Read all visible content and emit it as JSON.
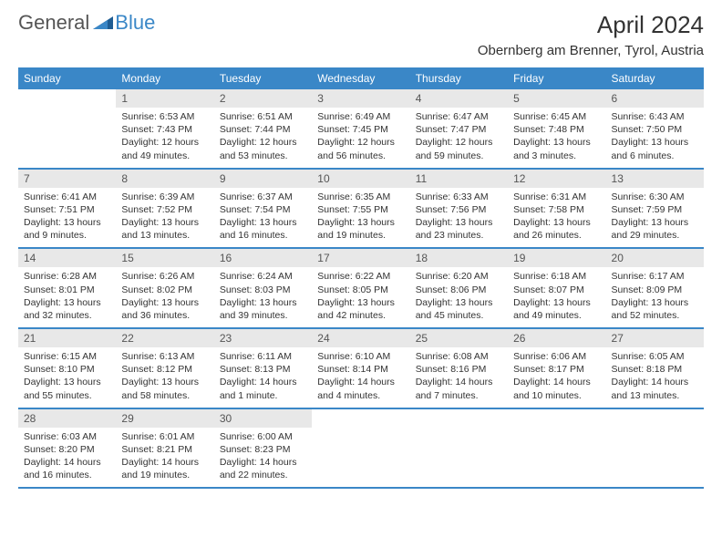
{
  "brand": {
    "text1": "General",
    "text2": "Blue",
    "triangle_color": "#3a87c7"
  },
  "title": "April 2024",
  "location": "Obernberg am Brenner, Tyrol, Austria",
  "colors": {
    "header_bg": "#3a87c7",
    "header_text": "#ffffff",
    "daynum_bg": "#e8e8e8",
    "divider": "#3a87c7",
    "body_text": "#333333"
  },
  "day_headers": [
    "Sunday",
    "Monday",
    "Tuesday",
    "Wednesday",
    "Thursday",
    "Friday",
    "Saturday"
  ],
  "weeks": [
    [
      {
        "day": "",
        "sunrise": "",
        "sunset": "",
        "daylight": ""
      },
      {
        "day": "1",
        "sunrise": "Sunrise: 6:53 AM",
        "sunset": "Sunset: 7:43 PM",
        "daylight": "Daylight: 12 hours and 49 minutes."
      },
      {
        "day": "2",
        "sunrise": "Sunrise: 6:51 AM",
        "sunset": "Sunset: 7:44 PM",
        "daylight": "Daylight: 12 hours and 53 minutes."
      },
      {
        "day": "3",
        "sunrise": "Sunrise: 6:49 AM",
        "sunset": "Sunset: 7:45 PM",
        "daylight": "Daylight: 12 hours and 56 minutes."
      },
      {
        "day": "4",
        "sunrise": "Sunrise: 6:47 AM",
        "sunset": "Sunset: 7:47 PM",
        "daylight": "Daylight: 12 hours and 59 minutes."
      },
      {
        "day": "5",
        "sunrise": "Sunrise: 6:45 AM",
        "sunset": "Sunset: 7:48 PM",
        "daylight": "Daylight: 13 hours and 3 minutes."
      },
      {
        "day": "6",
        "sunrise": "Sunrise: 6:43 AM",
        "sunset": "Sunset: 7:50 PM",
        "daylight": "Daylight: 13 hours and 6 minutes."
      }
    ],
    [
      {
        "day": "7",
        "sunrise": "Sunrise: 6:41 AM",
        "sunset": "Sunset: 7:51 PM",
        "daylight": "Daylight: 13 hours and 9 minutes."
      },
      {
        "day": "8",
        "sunrise": "Sunrise: 6:39 AM",
        "sunset": "Sunset: 7:52 PM",
        "daylight": "Daylight: 13 hours and 13 minutes."
      },
      {
        "day": "9",
        "sunrise": "Sunrise: 6:37 AM",
        "sunset": "Sunset: 7:54 PM",
        "daylight": "Daylight: 13 hours and 16 minutes."
      },
      {
        "day": "10",
        "sunrise": "Sunrise: 6:35 AM",
        "sunset": "Sunset: 7:55 PM",
        "daylight": "Daylight: 13 hours and 19 minutes."
      },
      {
        "day": "11",
        "sunrise": "Sunrise: 6:33 AM",
        "sunset": "Sunset: 7:56 PM",
        "daylight": "Daylight: 13 hours and 23 minutes."
      },
      {
        "day": "12",
        "sunrise": "Sunrise: 6:31 AM",
        "sunset": "Sunset: 7:58 PM",
        "daylight": "Daylight: 13 hours and 26 minutes."
      },
      {
        "day": "13",
        "sunrise": "Sunrise: 6:30 AM",
        "sunset": "Sunset: 7:59 PM",
        "daylight": "Daylight: 13 hours and 29 minutes."
      }
    ],
    [
      {
        "day": "14",
        "sunrise": "Sunrise: 6:28 AM",
        "sunset": "Sunset: 8:01 PM",
        "daylight": "Daylight: 13 hours and 32 minutes."
      },
      {
        "day": "15",
        "sunrise": "Sunrise: 6:26 AM",
        "sunset": "Sunset: 8:02 PM",
        "daylight": "Daylight: 13 hours and 36 minutes."
      },
      {
        "day": "16",
        "sunrise": "Sunrise: 6:24 AM",
        "sunset": "Sunset: 8:03 PM",
        "daylight": "Daylight: 13 hours and 39 minutes."
      },
      {
        "day": "17",
        "sunrise": "Sunrise: 6:22 AM",
        "sunset": "Sunset: 8:05 PM",
        "daylight": "Daylight: 13 hours and 42 minutes."
      },
      {
        "day": "18",
        "sunrise": "Sunrise: 6:20 AM",
        "sunset": "Sunset: 8:06 PM",
        "daylight": "Daylight: 13 hours and 45 minutes."
      },
      {
        "day": "19",
        "sunrise": "Sunrise: 6:18 AM",
        "sunset": "Sunset: 8:07 PM",
        "daylight": "Daylight: 13 hours and 49 minutes."
      },
      {
        "day": "20",
        "sunrise": "Sunrise: 6:17 AM",
        "sunset": "Sunset: 8:09 PM",
        "daylight": "Daylight: 13 hours and 52 minutes."
      }
    ],
    [
      {
        "day": "21",
        "sunrise": "Sunrise: 6:15 AM",
        "sunset": "Sunset: 8:10 PM",
        "daylight": "Daylight: 13 hours and 55 minutes."
      },
      {
        "day": "22",
        "sunrise": "Sunrise: 6:13 AM",
        "sunset": "Sunset: 8:12 PM",
        "daylight": "Daylight: 13 hours and 58 minutes."
      },
      {
        "day": "23",
        "sunrise": "Sunrise: 6:11 AM",
        "sunset": "Sunset: 8:13 PM",
        "daylight": "Daylight: 14 hours and 1 minute."
      },
      {
        "day": "24",
        "sunrise": "Sunrise: 6:10 AM",
        "sunset": "Sunset: 8:14 PM",
        "daylight": "Daylight: 14 hours and 4 minutes."
      },
      {
        "day": "25",
        "sunrise": "Sunrise: 6:08 AM",
        "sunset": "Sunset: 8:16 PM",
        "daylight": "Daylight: 14 hours and 7 minutes."
      },
      {
        "day": "26",
        "sunrise": "Sunrise: 6:06 AM",
        "sunset": "Sunset: 8:17 PM",
        "daylight": "Daylight: 14 hours and 10 minutes."
      },
      {
        "day": "27",
        "sunrise": "Sunrise: 6:05 AM",
        "sunset": "Sunset: 8:18 PM",
        "daylight": "Daylight: 14 hours and 13 minutes."
      }
    ],
    [
      {
        "day": "28",
        "sunrise": "Sunrise: 6:03 AM",
        "sunset": "Sunset: 8:20 PM",
        "daylight": "Daylight: 14 hours and 16 minutes."
      },
      {
        "day": "29",
        "sunrise": "Sunrise: 6:01 AM",
        "sunset": "Sunset: 8:21 PM",
        "daylight": "Daylight: 14 hours and 19 minutes."
      },
      {
        "day": "30",
        "sunrise": "Sunrise: 6:00 AM",
        "sunset": "Sunset: 8:23 PM",
        "daylight": "Daylight: 14 hours and 22 minutes."
      },
      {
        "day": "",
        "sunrise": "",
        "sunset": "",
        "daylight": ""
      },
      {
        "day": "",
        "sunrise": "",
        "sunset": "",
        "daylight": ""
      },
      {
        "day": "",
        "sunrise": "",
        "sunset": "",
        "daylight": ""
      },
      {
        "day": "",
        "sunrise": "",
        "sunset": "",
        "daylight": ""
      }
    ]
  ]
}
